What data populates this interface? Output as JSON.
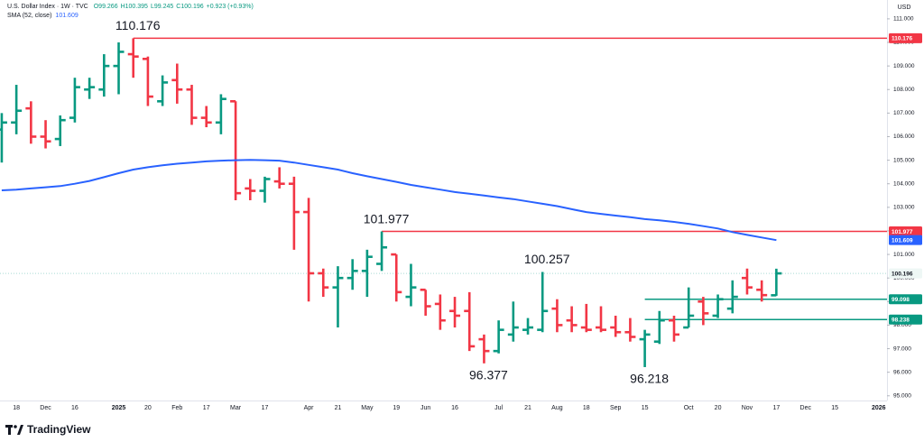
{
  "chart_data": {
    "type": "ohlc",
    "title": "U.S. Dollar Index · 1W · TVC",
    "header": [
      "O99.266",
      "H100.395",
      "L99.245",
      "C100.196",
      "+0.923 (+0.93%)"
    ],
    "currency": "USD",
    "brand": "TradingView",
    "categories": [
      null,
      "18",
      null,
      "Dec",
      null,
      "16",
      null,
      null,
      "2025",
      null,
      "20",
      null,
      "Feb",
      null,
      "17",
      null,
      "Mar",
      null,
      "17",
      null,
      null,
      "Apr",
      null,
      "21",
      null,
      "May",
      null,
      "19",
      null,
      "Jun",
      null,
      "16",
      null,
      null,
      "Jul",
      null,
      "21",
      null,
      "Aug",
      null,
      "18",
      null,
      "Sep",
      null,
      "15",
      null,
      null,
      "Oct",
      null,
      "20",
      null,
      "Nov",
      null,
      "17",
      null,
      "Dec",
      null,
      "15",
      null,
      null,
      "2026"
    ],
    "up_color": "#089981",
    "down_color": "#f23645",
    "open": [
      106.3,
      106.6,
      107.2,
      106.0,
      105.9,
      106.8,
      108.0,
      108.0,
      109.0,
      109.5,
      109.3,
      107.5,
      108.4,
      108.0,
      106.8,
      106.6,
      107.5,
      103.8,
      103.7,
      104.1,
      104.0,
      102.8,
      100.2,
      99.6,
      100.0,
      100.3,
      100.6,
      101.0,
      99.2,
      99.5,
      98.9,
      98.6,
      98.6,
      97.4,
      96.9,
      97.6,
      97.8,
      97.8,
      98.7,
      98.2,
      97.9,
      97.9,
      97.9,
      97.7,
      97.4,
      97.3,
      98.2,
      97.9,
      99.0,
      98.4,
      98.7,
      100.0,
      99.5,
      99.266,
      null,
      null,
      null,
      null,
      null,
      null,
      null
    ],
    "high": [
      107.0,
      108.2,
      107.5,
      106.7,
      106.9,
      108.5,
      108.5,
      109.5,
      110.0,
      110.176,
      109.4,
      108.6,
      109.1,
      108.2,
      107.3,
      107.8,
      107.5,
      104.2,
      104.3,
      104.7,
      104.3,
      103.4,
      100.4,
      100.5,
      100.8,
      101.2,
      101.977,
      101.0,
      100.6,
      99.5,
      99.3,
      99.2,
      99.4,
      97.6,
      98.2,
      99.0,
      98.3,
      100.257,
      99.1,
      98.8,
      98.9,
      98.8,
      98.4,
      98.3,
      97.8,
      98.6,
      98.4,
      99.6,
      99.2,
      99.3,
      99.9,
      100.4,
      99.9,
      100.395,
      null,
      null,
      null,
      null,
      null,
      null,
      null
    ],
    "low": [
      104.9,
      106.1,
      105.7,
      105.5,
      105.6,
      106.6,
      107.6,
      107.7,
      107.8,
      108.5,
      107.3,
      107.3,
      107.4,
      106.5,
      106.4,
      106.1,
      103.3,
      103.3,
      103.2,
      103.8,
      101.2,
      99.0,
      99.2,
      97.9,
      99.5,
      99.2,
      100.3,
      99.0,
      98.8,
      98.4,
      97.8,
      97.9,
      96.9,
      96.377,
      96.8,
      97.3,
      97.6,
      97.7,
      97.7,
      97.7,
      97.7,
      97.7,
      97.5,
      97.3,
      96.218,
      97.2,
      97.3,
      97.9,
      98.0,
      98.3,
      98.5,
      99.3,
      99.0,
      99.245,
      null,
      null,
      null,
      null,
      null,
      null,
      null
    ],
    "close": [
      106.6,
      107.1,
      106.0,
      105.8,
      106.7,
      108.1,
      108.1,
      109.0,
      109.6,
      109.4,
      107.7,
      108.3,
      108.0,
      106.8,
      106.6,
      107.6,
      103.6,
      103.7,
      104.2,
      104.0,
      102.8,
      100.2,
      99.6,
      100.0,
      100.3,
      100.9,
      101.3,
      99.4,
      99.6,
      98.8,
      98.2,
      98.4,
      97.1,
      96.9,
      97.8,
      97.9,
      97.9,
      98.6,
      98.0,
      98.0,
      97.8,
      97.8,
      97.7,
      97.5,
      97.6,
      98.2,
      97.6,
      98.4,
      98.5,
      99.1,
      99.2,
      99.6,
      99.273,
      100.196,
      null,
      null,
      null,
      null,
      null,
      null,
      null
    ],
    "series": [
      {
        "name": "SMA (52, close)",
        "color": "#2962ff",
        "values": [
          103.72,
          103.75,
          103.8,
          103.85,
          103.9,
          104.0,
          104.12,
          104.28,
          104.45,
          104.6,
          104.7,
          104.78,
          104.85,
          104.9,
          104.95,
          104.98,
          105.0,
          105.01,
          105.0,
          104.98,
          104.9,
          104.8,
          104.7,
          104.6,
          104.45,
          104.32,
          104.2,
          104.08,
          103.95,
          103.85,
          103.75,
          103.65,
          103.58,
          103.5,
          103.42,
          103.35,
          103.25,
          103.15,
          103.05,
          102.92,
          102.8,
          102.72,
          102.65,
          102.58,
          102.5,
          102.45,
          102.38,
          102.3,
          102.2,
          102.1,
          101.95,
          101.83,
          101.72,
          101.609,
          null,
          null,
          null,
          null,
          null,
          null,
          null
        ]
      }
    ],
    "ylim": [
      94.8,
      111.8
    ],
    "yticks": [
      {
        "value": 95,
        "label": "95.000"
      },
      {
        "value": 96,
        "label": "96.000"
      },
      {
        "value": 97,
        "label": "97.000"
      },
      {
        "value": 98,
        "label": "98.000"
      },
      {
        "value": 99,
        "label": "99.000"
      },
      {
        "value": 100,
        "label": "100.000"
      },
      {
        "value": 101,
        "label": "101.000"
      },
      {
        "value": 102,
        "label": "102.000"
      },
      {
        "value": 103,
        "label": "103.000"
      },
      {
        "value": 104,
        "label": "104.000"
      },
      {
        "value": 105,
        "label": "105.000"
      },
      {
        "value": 106,
        "label": "106.000"
      },
      {
        "value": 107,
        "label": "107.000"
      },
      {
        "value": 108,
        "label": "108.000"
      },
      {
        "value": 109,
        "label": "109.000"
      },
      {
        "value": 110,
        "label": "110.000"
      },
      {
        "value": 111,
        "label": "111.000"
      }
    ],
    "levels": [
      {
        "value": 110.176,
        "color": "#f23645",
        "from": 9
      },
      {
        "value": 101.977,
        "color": "#f23645",
        "from": 26
      },
      {
        "value": 99.098,
        "color": "#089981",
        "from": 44
      },
      {
        "value": 98.238,
        "color": "#089981",
        "from": 44
      }
    ],
    "annotations": [
      {
        "value": 110.176,
        "at": 9
      },
      {
        "value": 101.977,
        "at": 26
      },
      {
        "value": 100.257,
        "at": 37
      },
      {
        "value": 96.377,
        "at": 33
      },
      {
        "value": 96.218,
        "at": 44
      }
    ]
  }
}
